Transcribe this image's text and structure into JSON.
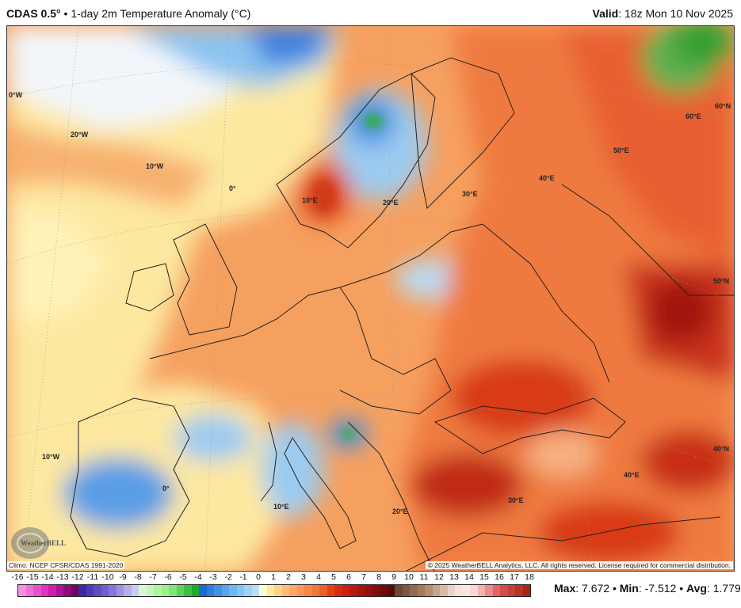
{
  "header": {
    "model": "CDAS 0.5°",
    "separator": "•",
    "product": "1-day 2m Temperature Anomaly (°C)",
    "valid_label": "Valid",
    "valid_time": ": 18z Mon 10 Nov 2025"
  },
  "map": {
    "grid_labels": [
      "0°W",
      "20°W",
      "10°W",
      "0°",
      "10°E",
      "20°E",
      "30°E",
      "40°E",
      "50°E",
      "60°E",
      "60°N",
      "50°N",
      "40°N",
      "10°W",
      "0°",
      "10°E",
      "20°E",
      "30°E",
      "40°E"
    ],
    "logo_text": "WeatherBELL"
  },
  "footer": {
    "climo": "Climo: NCEP CFSR/CDAS 1991-2020",
    "copyright": "© 2025 WeatherBELL Analytics, LLC. All rights reserved. License required for commercial distribution."
  },
  "colorbar": {
    "ticks": [
      "-16",
      "-15",
      "-14",
      "-13",
      "-12",
      "-11",
      "-10",
      "-9",
      "-8",
      "-7",
      "-6",
      "-5",
      "-4",
      "-3",
      "-2",
      "-1",
      "0",
      "1",
      "2",
      "3",
      "4",
      "5",
      "6",
      "7",
      "8",
      "9",
      "10",
      "11",
      "12",
      "13",
      "14",
      "15",
      "16",
      "17",
      "18"
    ],
    "min": -16,
    "max": 18,
    "anchors": [
      [
        -16,
        "#f7a0ea"
      ],
      [
        -14,
        "#e020c0"
      ],
      [
        -12.01,
        "#600050"
      ],
      [
        -12,
        "#3020a0"
      ],
      [
        -10,
        "#7868d8"
      ],
      [
        -8.01,
        "#d8d8f4"
      ],
      [
        -8,
        "#e4f8e0"
      ],
      [
        -6,
        "#90f080"
      ],
      [
        -4.01,
        "#10a020"
      ],
      [
        -4,
        "#1060d0"
      ],
      [
        -2,
        "#60b0f0"
      ],
      [
        -0.01,
        "#c4e6f8"
      ],
      [
        0,
        "#ffffff"
      ],
      [
        0.5,
        "#fffaa0"
      ],
      [
        1,
        "#ffe090"
      ],
      [
        2,
        "#ffb070"
      ],
      [
        4,
        "#f07030"
      ],
      [
        5,
        "#e03010"
      ],
      [
        7,
        "#a01010"
      ],
      [
        8.99,
        "#500808"
      ],
      [
        9,
        "#604030"
      ],
      [
        11,
        "#b08060"
      ],
      [
        13,
        "#f0e0d8"
      ],
      [
        14,
        "#ffe8e8"
      ],
      [
        15,
        "#f0a0a0"
      ],
      [
        16,
        "#e05050"
      ],
      [
        18,
        "#a02010"
      ]
    ]
  },
  "stats": {
    "max_label": "Max",
    "max_value": ": 7.672",
    "min_label": "Min",
    "min_value": ": -7.512",
    "avg_label": "Avg",
    "avg_value": ": 1.779",
    "dot": " • "
  }
}
